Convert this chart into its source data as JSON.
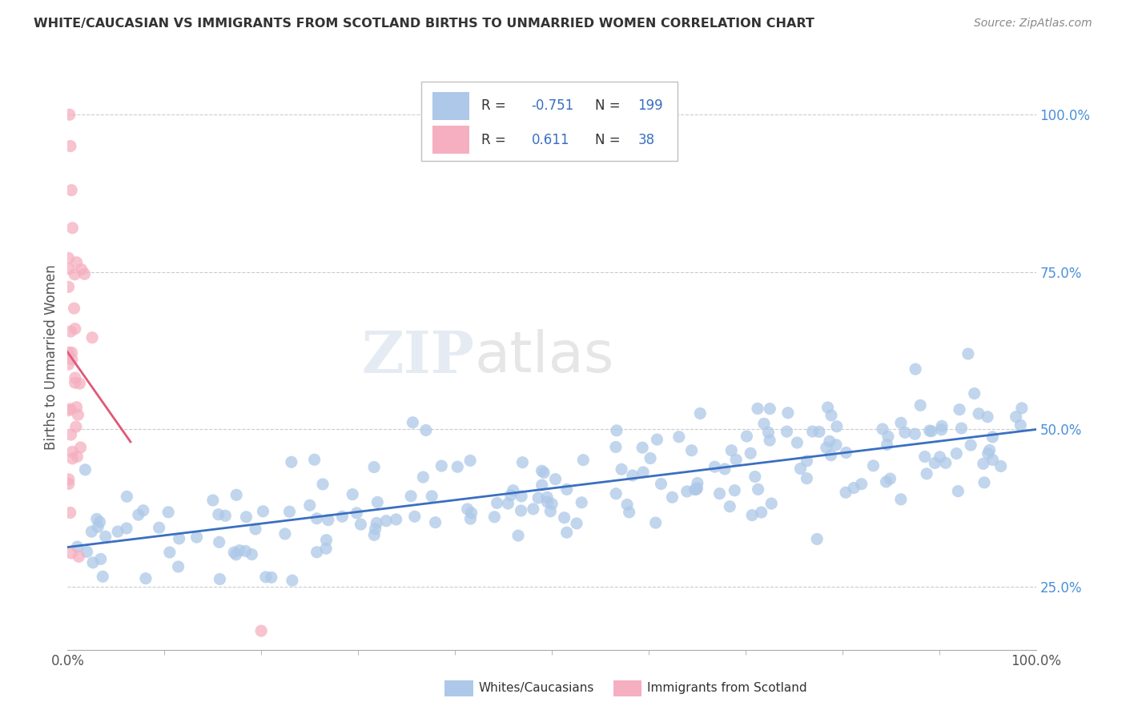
{
  "title": "WHITE/CAUCASIAN VS IMMIGRANTS FROM SCOTLAND BIRTHS TO UNMARRIED WOMEN CORRELATION CHART",
  "source": "Source: ZipAtlas.com",
  "ylabel": "Births to Unmarried Women",
  "ytick_labels": [
    "25.0%",
    "50.0%",
    "75.0%",
    "100.0%"
  ],
  "ytick_values": [
    0.25,
    0.5,
    0.75,
    1.0
  ],
  "blue_R": -0.751,
  "blue_N": 199,
  "pink_R": 0.611,
  "pink_N": 38,
  "blue_color": "#adc8e8",
  "blue_line_color": "#3a6fc0",
  "pink_color": "#f5afc0",
  "pink_line_color": "#e05878",
  "watermark_zip": "ZIP",
  "watermark_atlas": "atlas",
  "background_color": "#ffffff",
  "grid_color": "#cccccc",
  "legend_box_blue": "#adc8e8",
  "legend_box_pink": "#f5afc0",
  "title_color": "#333333",
  "source_color": "#888888",
  "axis_label_color": "#4a90d9",
  "tick_color": "#555555"
}
